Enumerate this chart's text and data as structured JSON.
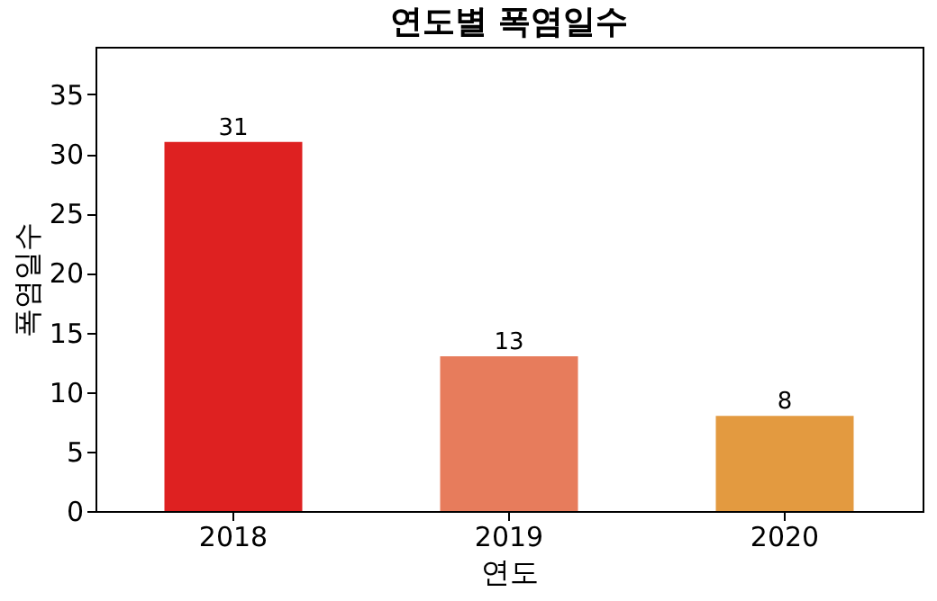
{
  "chart_data": {
    "type": "bar",
    "title": "연도별 폭염일수",
    "xlabel": "연도",
    "ylabel": "폭염일수",
    "categories": [
      "2018",
      "2019",
      "2020"
    ],
    "values": [
      31,
      13,
      8
    ],
    "colors": [
      "#de2121",
      "#e77c5c",
      "#e39a40"
    ],
    "ylim": [
      0,
      39
    ],
    "yticks": [
      0,
      5,
      10,
      15,
      20,
      25,
      30,
      35
    ],
    "grid": false,
    "data_labels": true
  }
}
